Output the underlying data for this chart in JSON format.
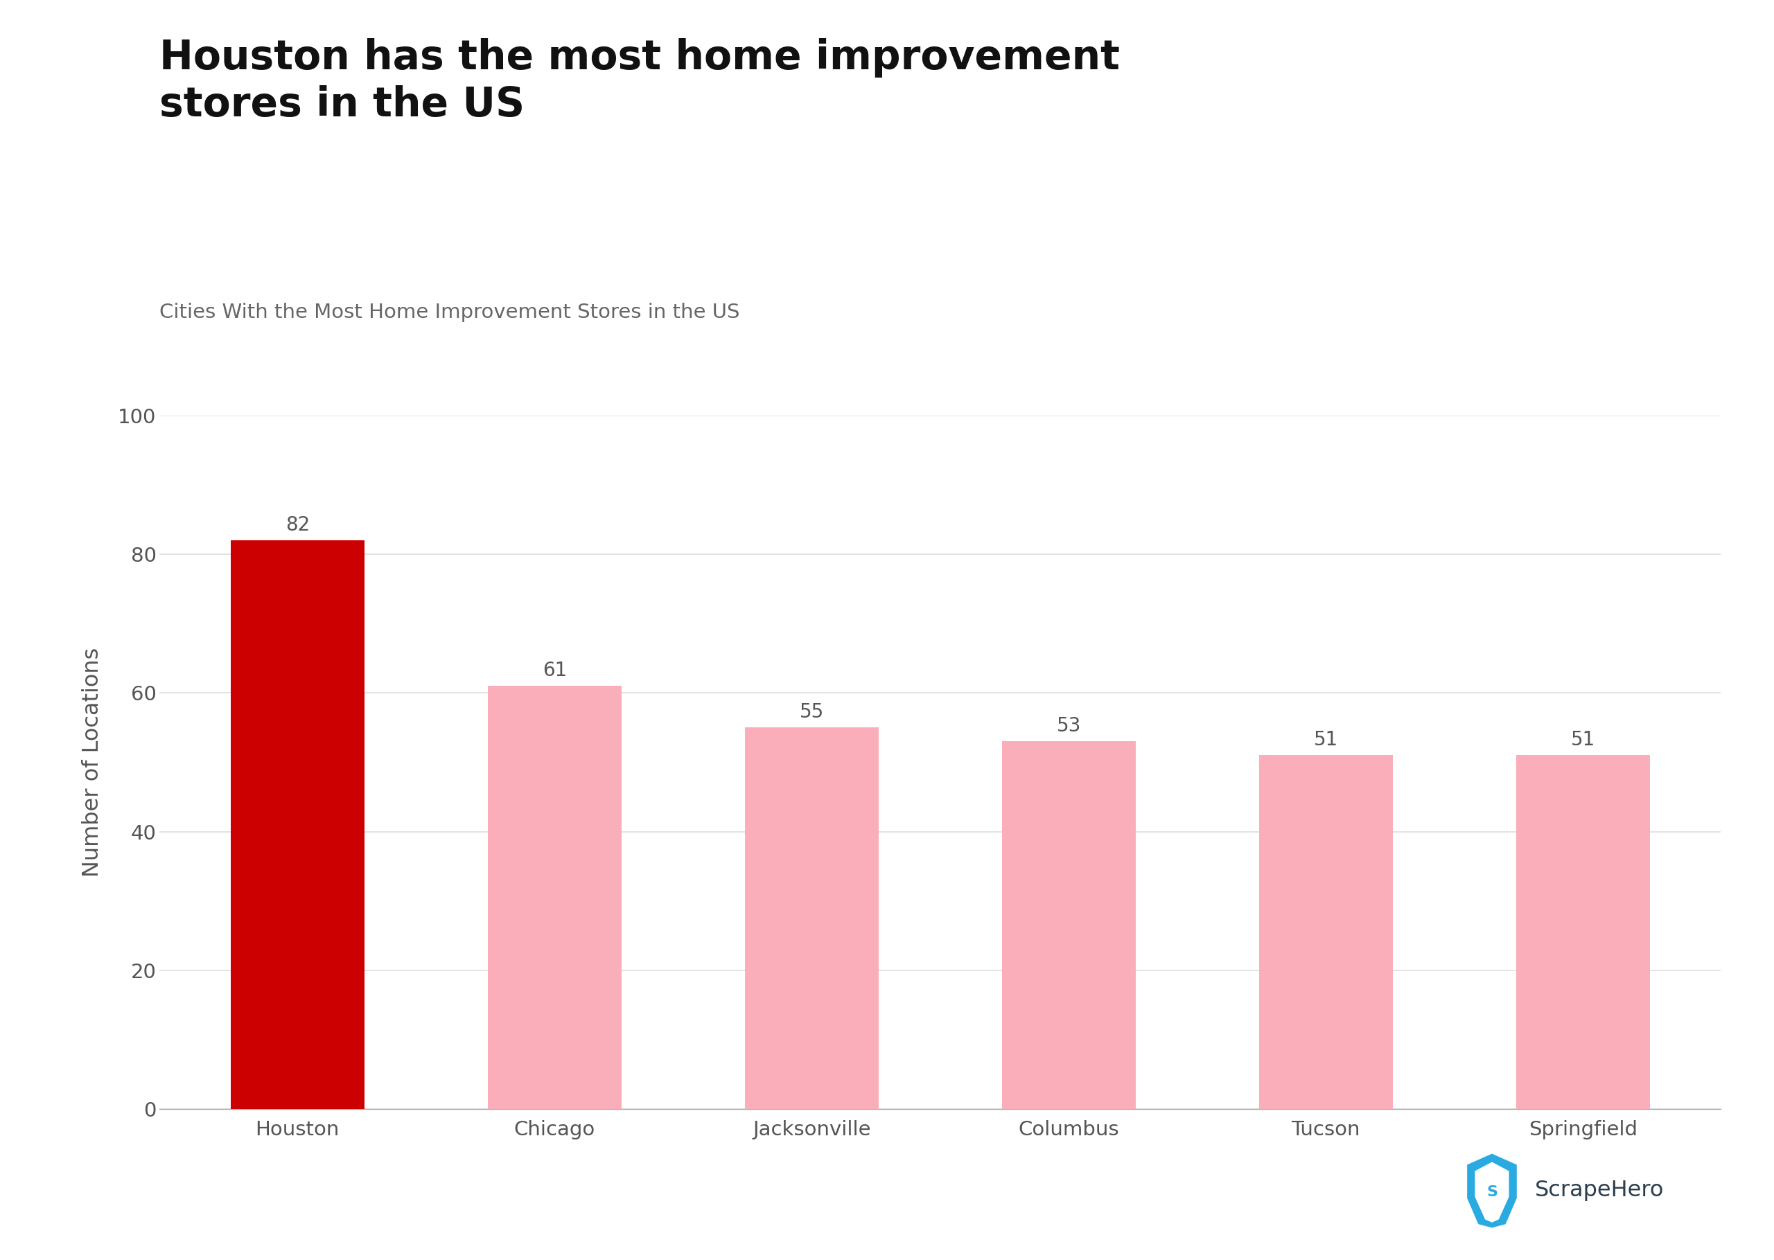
{
  "title_bold": "Houston has the most home improvement\nstores in the US",
  "subtitle": "Cities With the Most Home Improvement Stores in the US",
  "categories": [
    "Houston",
    "Chicago",
    "Jacksonville",
    "Columbus",
    "Tucson",
    "Springfield"
  ],
  "values": [
    82,
    61,
    55,
    53,
    51,
    51
  ],
  "bar_colors": [
    "#CC0000",
    "#F9AEBA",
    "#F9AEBA",
    "#F9AEBA",
    "#F9AEBA",
    "#F9AEBA"
  ],
  "ylabel": "Number of Locations",
  "ylim": [
    0,
    100
  ],
  "yticks": [
    0,
    20,
    40,
    60,
    80,
    100
  ],
  "background_color": "#ffffff",
  "title_fontsize": 42,
  "subtitle_fontsize": 21,
  "ylabel_fontsize": 23,
  "tick_fontsize": 21,
  "bar_label_fontsize": 20,
  "title_color": "#111111",
  "subtitle_color": "#666666",
  "tick_color": "#555555",
  "grid_color": "#dddddd",
  "scrapehero_text": "ScrapeHero",
  "scrapehero_color": "#2d3e50",
  "scrapehero_icon_color": "#29abe2"
}
